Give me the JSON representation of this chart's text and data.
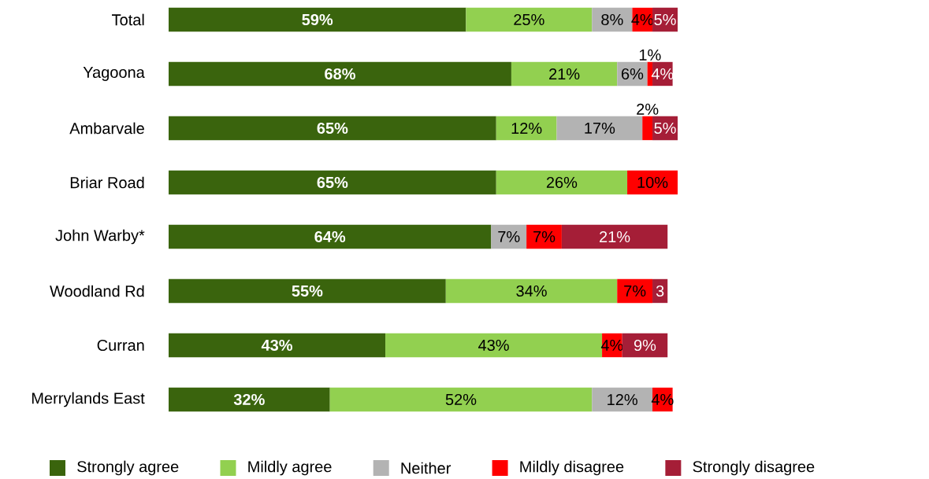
{
  "chart_data": {
    "type": "bar",
    "orientation": "horizontal",
    "stacked": true,
    "legend": "bottom",
    "categories": [
      "Total",
      "Yagoona",
      "Ambarvale",
      "Briar Road",
      "John Warby*",
      "Woodland Rd",
      "Curran",
      "Merrylands East"
    ],
    "series": [
      {
        "name": "Strongly agree",
        "color": "#3a640d",
        "values": [
          59,
          68,
          65,
          65,
          64,
          55,
          43,
          32
        ],
        "value_labels": [
          "59%",
          "68%",
          "65%",
          "65%",
          "64%",
          "55%",
          "43%",
          "32%"
        ]
      },
      {
        "name": "Mildly agree",
        "color": "#92d050",
        "values": [
          25,
          21,
          12,
          26,
          null,
          34,
          43,
          52
        ],
        "value_labels": [
          "25%",
          "21%",
          "12%",
          "26%",
          null,
          "34%",
          "43%",
          "52%"
        ]
      },
      {
        "name": "Neither",
        "color": "#b3b3b3",
        "values": [
          8,
          6,
          17,
          null,
          7,
          null,
          null,
          12
        ],
        "value_labels": [
          "8%",
          "6%",
          "17%",
          null,
          "7%",
          null,
          null,
          "12%"
        ]
      },
      {
        "name": "Mildly disagree",
        "color": "#ff0000",
        "values": [
          4,
          1,
          2,
          10,
          7,
          7,
          4,
          4
        ],
        "value_labels": [
          "4%",
          "1%",
          "2%",
          "10%",
          "7%",
          "7%",
          "4%",
          "4%"
        ]
      },
      {
        "name": "Strongly disagree",
        "color": "#a51e37",
        "values": [
          5,
          4,
          5,
          null,
          21,
          3,
          9,
          null
        ],
        "value_labels": [
          "5%",
          "4%",
          "5%",
          null,
          "21%",
          "3",
          "9%",
          null
        ]
      }
    ]
  }
}
